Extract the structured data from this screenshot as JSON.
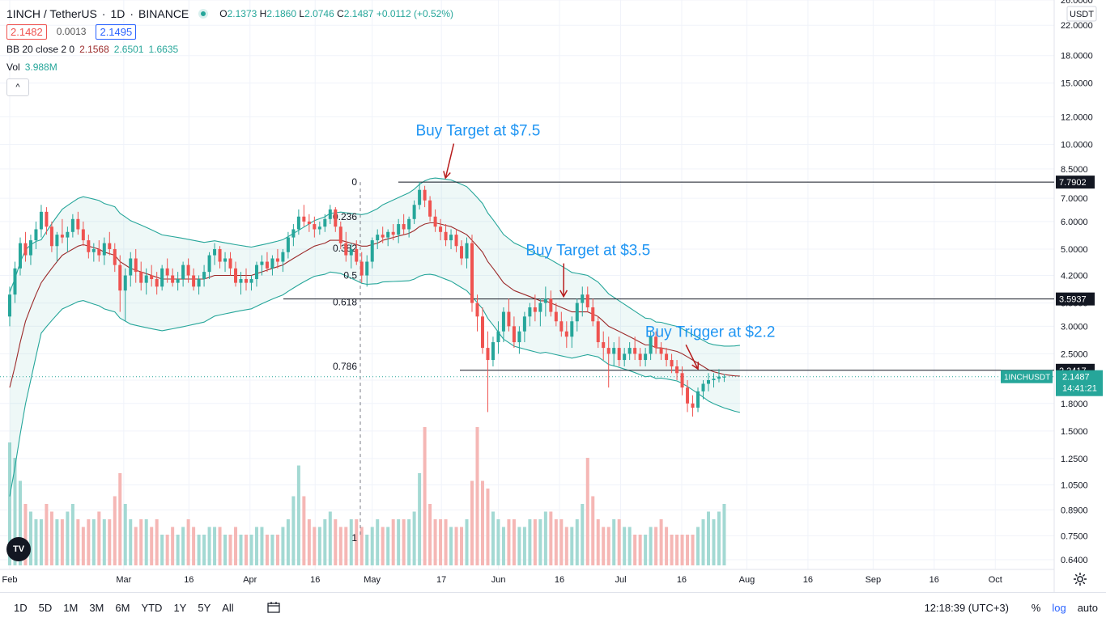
{
  "header": {
    "symbol": "1INCH / TetherUS",
    "interval": "1D",
    "exchange": "BINANCE",
    "ohlc": {
      "o_label": "O",
      "o": "2.1373",
      "h_label": "H",
      "h": "2.1860",
      "l_label": "L",
      "l": "2.0746",
      "c_label": "C",
      "c": "2.1487",
      "change": "+0.0112 (+0.52%)"
    },
    "sell_price": "2.1482",
    "spread": "0.0013",
    "buy_price": "2.1495",
    "bb_label": "BB 20 close 2 0",
    "bb_basis": "2.1568",
    "bb_upper": "2.6501",
    "bb_lower": "1.6635",
    "vol_label": "Vol",
    "vol_value": "3.988M",
    "collapse_glyph": "^"
  },
  "toolbar": {
    "timeframes": [
      "1D",
      "5D",
      "1M",
      "3M",
      "6M",
      "YTD",
      "1Y",
      "5Y",
      "All"
    ],
    "clock": "12:18:39 (UTC+3)",
    "percent": "%",
    "log": "log",
    "auto": "auto"
  },
  "chart_data": {
    "type": "candlestick",
    "title": "1INCH / TetherUS 1D BINANCE",
    "y_scale": "log",
    "currency": "USDT",
    "ylim": [
      0.6,
      26.0
    ],
    "y_ticks": [
      "26.0000",
      "22.0000",
      "18.0000",
      "15.0000",
      "12.0000",
      "10.0000",
      "8.5000",
      "7.0000",
      "6.0000",
      "5.0000",
      "4.2000",
      "3.5000",
      "3.0000",
      "2.5000",
      "2.1000",
      "1.8000",
      "1.5000",
      "1.2500",
      "1.0500",
      "0.8900",
      "0.7500",
      "0.6400"
    ],
    "y_tick_values": [
      26,
      22,
      18,
      15,
      12,
      10,
      8.5,
      7,
      6,
      5,
      4.2,
      3.5,
      3,
      2.5,
      2.1,
      1.8,
      1.5,
      1.25,
      1.05,
      0.89,
      0.75,
      0.64
    ],
    "x_ticks": [
      "Feb",
      "Mar",
      "16",
      "Apr",
      "16",
      "May",
      "17",
      "Jun",
      "16",
      "Jul",
      "16",
      "Aug",
      "16",
      "Sep",
      "16",
      "Oct"
    ],
    "x_tick_days": [
      0,
      28,
      44,
      59,
      75,
      89,
      106,
      120,
      135,
      150,
      165,
      181,
      196,
      212,
      227,
      242
    ],
    "price_labels": [
      {
        "text": "7.7902",
        "value": 7.7902,
        "style": "dark"
      },
      {
        "text": "3.5937",
        "value": 3.5937,
        "style": "dark"
      },
      {
        "text": "2.2417",
        "value": 2.2417,
        "style": "dark"
      },
      {
        "text": "1INCHUSDT",
        "value": 2.1487,
        "style": "green-tag"
      },
      {
        "text": "2.1487",
        "value": 2.1487,
        "style": "green"
      },
      {
        "text": "14:41:21",
        "value": 2.1487,
        "style": "green-sub"
      }
    ],
    "horizontal_levels": [
      7.7902,
      3.5937,
      2.2417
    ],
    "fibonacci": {
      "levels": [
        {
          "ratio": "0",
          "price": 7.79
        },
        {
          "ratio": "0.236",
          "price": 6.2
        },
        {
          "ratio": "0.382",
          "price": 5.02
        },
        {
          "ratio": "0.5",
          "price": 4.2
        },
        {
          "ratio": "0.618",
          "price": 3.52
        },
        {
          "ratio": "0.786",
          "price": 2.3
        },
        {
          "ratio": "1",
          "price": 0.74
        }
      ]
    },
    "annotations": [
      {
        "text": "Buy Target at $7.5",
        "day": 115,
        "price": 10.6,
        "arrow_to_day": 107,
        "arrow_to_price": 8.0
      },
      {
        "text": "Buy Target at $3.5",
        "day": 142,
        "price": 4.8,
        "arrow_to_day": 136,
        "arrow_to_price": 3.65
      },
      {
        "text": "Buy Trigger at $2.2",
        "day": 172,
        "price": 2.8,
        "arrow_to_day": 169,
        "arrow_to_price": 2.26
      }
    ],
    "candles_ohlc": [
      [
        3.2,
        3.9,
        3.0,
        3.7
      ],
      [
        3.7,
        4.6,
        3.5,
        4.4
      ],
      [
        4.4,
        5.4,
        4.2,
        5.2
      ],
      [
        5.2,
        5.6,
        4.6,
        4.8
      ],
      [
        4.8,
        5.5,
        4.5,
        5.3
      ],
      [
        5.3,
        6.0,
        5.0,
        5.7
      ],
      [
        5.7,
        6.7,
        5.4,
        6.4
      ],
      [
        6.4,
        6.6,
        5.5,
        5.8
      ],
      [
        5.8,
        6.0,
        4.9,
        5.1
      ],
      [
        5.1,
        5.6,
        4.6,
        5.5
      ],
      [
        5.5,
        6.1,
        5.2,
        5.4
      ],
      [
        5.4,
        5.8,
        4.9,
        5.6
      ],
      [
        5.6,
        6.3,
        5.4,
        6.1
      ],
      [
        6.1,
        6.4,
        5.5,
        5.7
      ],
      [
        5.7,
        6.0,
        5.1,
        5.3
      ],
      [
        5.3,
        5.5,
        4.7,
        4.9
      ],
      [
        4.9,
        5.2,
        4.6,
        5.0
      ],
      [
        5.0,
        5.3,
        4.6,
        4.8
      ],
      [
        4.8,
        5.4,
        4.5,
        5.2
      ],
      [
        5.2,
        5.6,
        4.8,
        5.0
      ],
      [
        5.0,
        5.2,
        4.3,
        4.5
      ],
      [
        4.5,
        4.8,
        3.3,
        3.8
      ],
      [
        3.8,
        4.4,
        3.1,
        4.2
      ],
      [
        4.2,
        4.9,
        3.9,
        4.7
      ],
      [
        4.7,
        5.0,
        4.0,
        4.3
      ],
      [
        4.3,
        4.6,
        3.8,
        4.0
      ],
      [
        4.0,
        4.4,
        3.7,
        4.2
      ],
      [
        4.2,
        4.5,
        3.9,
        4.1
      ],
      [
        4.1,
        4.3,
        3.7,
        3.9
      ],
      [
        3.9,
        4.5,
        3.8,
        4.4
      ],
      [
        4.4,
        4.7,
        4.0,
        4.2
      ],
      [
        4.2,
        4.4,
        3.9,
        4.0
      ],
      [
        4.0,
        4.3,
        3.8,
        4.1
      ],
      [
        4.1,
        4.6,
        3.9,
        4.5
      ],
      [
        4.5,
        4.7,
        4.0,
        4.2
      ],
      [
        4.2,
        4.4,
        3.8,
        3.9
      ],
      [
        3.9,
        4.2,
        3.7,
        4.1
      ],
      [
        4.1,
        4.5,
        3.9,
        4.3
      ],
      [
        4.3,
        4.9,
        4.1,
        4.8
      ],
      [
        4.8,
        5.2,
        4.5,
        5.0
      ],
      [
        5.0,
        5.1,
        4.4,
        4.6
      ],
      [
        4.6,
        4.9,
        4.3,
        4.7
      ],
      [
        4.7,
        4.9,
        4.2,
        4.4
      ],
      [
        4.4,
        4.6,
        3.9,
        4.0
      ],
      [
        4.0,
        4.3,
        3.7,
        4.1
      ],
      [
        4.1,
        4.4,
        3.8,
        4.0
      ],
      [
        4.0,
        4.2,
        3.8,
        4.1
      ],
      [
        4.1,
        4.6,
        3.9,
        4.5
      ],
      [
        4.5,
        4.8,
        4.2,
        4.6
      ],
      [
        4.6,
        4.9,
        4.3,
        4.4
      ],
      [
        4.4,
        4.8,
        4.2,
        4.7
      ],
      [
        4.7,
        5.0,
        4.4,
        4.6
      ],
      [
        4.6,
        5.0,
        4.3,
        4.9
      ],
      [
        4.9,
        5.6,
        4.7,
        5.4
      ],
      [
        5.4,
        5.9,
        5.1,
        5.7
      ],
      [
        5.7,
        6.5,
        5.5,
        6.2
      ],
      [
        6.2,
        6.7,
        5.8,
        6.0
      ],
      [
        6.0,
        6.3,
        5.6,
        5.9
      ],
      [
        5.9,
        6.2,
        5.4,
        5.7
      ],
      [
        5.7,
        6.0,
        5.5,
        5.8
      ],
      [
        5.8,
        6.3,
        5.6,
        6.1
      ],
      [
        6.1,
        6.7,
        5.9,
        6.5
      ],
      [
        6.5,
        6.6,
        5.6,
        5.8
      ],
      [
        5.8,
        6.0,
        5.0,
        5.2
      ],
      [
        5.2,
        5.6,
        4.6,
        4.8
      ],
      [
        4.8,
        5.2,
        4.4,
        5.0
      ],
      [
        5.0,
        5.3,
        4.5,
        4.6
      ],
      [
        4.6,
        4.9,
        4.0,
        4.2
      ],
      [
        4.2,
        4.8,
        3.9,
        4.6
      ],
      [
        4.6,
        5.4,
        4.4,
        5.3
      ],
      [
        5.3,
        5.7,
        5.0,
        5.5
      ],
      [
        5.5,
        5.8,
        5.2,
        5.4
      ],
      [
        5.4,
        5.7,
        5.1,
        5.6
      ],
      [
        5.6,
        5.9,
        5.3,
        5.5
      ],
      [
        5.5,
        6.1,
        5.2,
        5.9
      ],
      [
        5.9,
        6.3,
        5.5,
        5.7
      ],
      [
        5.7,
        6.2,
        5.4,
        6.1
      ],
      [
        6.1,
        6.9,
        5.9,
        6.7
      ],
      [
        6.7,
        7.8,
        6.5,
        7.4
      ],
      [
        7.4,
        7.6,
        6.6,
        6.9
      ],
      [
        6.9,
        7.1,
        6.0,
        6.2
      ],
      [
        6.2,
        6.5,
        5.6,
        5.8
      ],
      [
        5.8,
        6.1,
        5.3,
        5.6
      ],
      [
        5.6,
        5.9,
        5.1,
        5.3
      ],
      [
        5.3,
        5.7,
        5.0,
        5.5
      ],
      [
        5.5,
        5.7,
        4.9,
        5.1
      ],
      [
        5.1,
        5.3,
        4.5,
        4.7
      ],
      [
        4.7,
        5.4,
        4.4,
        5.2
      ],
      [
        5.2,
        5.5,
        3.3,
        3.5
      ],
      [
        3.5,
        3.7,
        2.9,
        3.2
      ],
      [
        3.2,
        3.4,
        2.5,
        2.6
      ],
      [
        2.6,
        2.9,
        1.7,
        2.4
      ],
      [
        2.4,
        2.8,
        2.3,
        2.7
      ],
      [
        2.7,
        3.1,
        2.5,
        2.9
      ],
      [
        2.9,
        3.4,
        2.7,
        3.3
      ],
      [
        3.3,
        3.6,
        2.9,
        3.0
      ],
      [
        3.0,
        3.2,
        2.6,
        2.7
      ],
      [
        2.7,
        3.0,
        2.5,
        2.9
      ],
      [
        2.9,
        3.3,
        2.7,
        3.2
      ],
      [
        3.2,
        3.5,
        3.0,
        3.4
      ],
      [
        3.4,
        3.7,
        3.1,
        3.3
      ],
      [
        3.3,
        3.6,
        3.0,
        3.5
      ],
      [
        3.5,
        3.9,
        3.2,
        3.6
      ],
      [
        3.6,
        3.8,
        3.2,
        3.3
      ],
      [
        3.3,
        3.5,
        3.0,
        3.1
      ],
      [
        3.1,
        3.3,
        2.8,
        2.9
      ],
      [
        2.9,
        3.1,
        2.6,
        2.8
      ],
      [
        2.8,
        3.2,
        2.6,
        3.1
      ],
      [
        3.1,
        3.6,
        2.9,
        3.5
      ],
      [
        3.5,
        3.9,
        3.2,
        3.7
      ],
      [
        3.7,
        3.9,
        3.3,
        3.4
      ],
      [
        3.4,
        3.6,
        3.0,
        3.1
      ],
      [
        3.1,
        3.2,
        2.6,
        2.7
      ],
      [
        2.7,
        2.9,
        2.4,
        2.6
      ],
      [
        2.6,
        2.8,
        2.0,
        2.5
      ],
      [
        2.5,
        2.7,
        2.3,
        2.6
      ],
      [
        2.6,
        2.8,
        2.3,
        2.4
      ],
      [
        2.4,
        2.6,
        2.3,
        2.5
      ],
      [
        2.5,
        2.7,
        2.4,
        2.6
      ],
      [
        2.6,
        2.8,
        2.4,
        2.5
      ],
      [
        2.5,
        2.6,
        2.3,
        2.4
      ],
      [
        2.4,
        2.6,
        2.3,
        2.5
      ],
      [
        2.5,
        2.9,
        2.4,
        2.8
      ],
      [
        2.8,
        2.9,
        2.5,
        2.6
      ],
      [
        2.6,
        2.7,
        2.4,
        2.5
      ],
      [
        2.5,
        2.6,
        2.3,
        2.4
      ],
      [
        2.4,
        2.5,
        2.2,
        2.3
      ],
      [
        2.3,
        2.4,
        2.1,
        2.2
      ],
      [
        2.2,
        2.3,
        1.9,
        2.0
      ],
      [
        2.0,
        2.1,
        1.7,
        1.8
      ],
      [
        1.8,
        1.9,
        1.65,
        1.75
      ],
      [
        1.75,
        2.0,
        1.7,
        1.95
      ],
      [
        1.95,
        2.1,
        1.85,
        2.05
      ],
      [
        2.05,
        2.2,
        1.95,
        2.1
      ],
      [
        2.1,
        2.2,
        2.0,
        2.12
      ],
      [
        2.12,
        2.26,
        2.07,
        2.15
      ],
      [
        2.137,
        2.186,
        2.075,
        2.149
      ]
    ],
    "bollinger": {
      "basis": [
        2.0,
        2.3,
        2.7,
        3.1,
        3.4,
        3.7,
        4.0,
        4.2,
        4.4,
        4.6,
        4.8,
        4.9,
        5.0,
        5.1,
        5.15,
        5.1,
        5.05,
        5.0,
        4.9,
        4.85,
        4.8,
        4.6,
        4.5,
        4.4,
        4.35,
        4.3,
        4.25,
        4.2,
        4.15,
        4.1,
        4.1,
        4.1,
        4.1,
        4.1,
        4.1,
        4.1,
        4.1,
        4.1,
        4.15,
        4.2,
        4.2,
        4.2,
        4.2,
        4.2,
        4.2,
        4.2,
        4.2,
        4.25,
        4.3,
        4.35,
        4.4,
        4.45,
        4.5,
        4.6,
        4.7,
        4.8,
        4.9,
        5.0,
        5.1,
        5.15,
        5.2,
        5.3,
        5.3,
        5.3,
        5.25,
        5.2,
        5.15,
        5.1,
        5.1,
        5.15,
        5.2,
        5.3,
        5.35,
        5.4,
        5.45,
        5.5,
        5.55,
        5.65,
        5.8,
        5.9,
        5.95,
        5.95,
        5.9,
        5.85,
        5.8,
        5.7,
        5.6,
        5.5,
        5.3,
        5.1,
        4.9,
        4.6,
        4.4,
        4.2,
        4.0,
        3.9,
        3.8,
        3.75,
        3.7,
        3.65,
        3.6,
        3.55,
        3.55,
        3.5,
        3.45,
        3.4,
        3.35,
        3.3,
        3.3,
        3.3,
        3.3,
        3.25,
        3.2,
        3.1,
        3.0,
        2.95,
        2.9,
        2.85,
        2.8,
        2.75,
        2.7,
        2.65,
        2.65,
        2.6,
        2.6,
        2.58,
        2.56,
        2.54,
        2.5,
        2.45,
        2.4,
        2.35,
        2.3,
        2.25,
        2.22,
        2.2,
        2.18,
        2.17,
        2.16,
        2.157
      ],
      "upper_band_value": 2.6501,
      "lower_band_value": 1.6635
    },
    "volume": {
      "unit": "M",
      "last": 3.988,
      "values_relative": [
        0.8,
        0.7,
        0.55,
        0.4,
        0.35,
        0.3,
        0.3,
        0.4,
        0.35,
        0.3,
        0.3,
        0.35,
        0.4,
        0.3,
        0.25,
        0.3,
        0.3,
        0.35,
        0.3,
        0.3,
        0.45,
        0.6,
        0.4,
        0.3,
        0.25,
        0.3,
        0.3,
        0.25,
        0.3,
        0.2,
        0.2,
        0.25,
        0.2,
        0.25,
        0.3,
        0.25,
        0.2,
        0.2,
        0.25,
        0.25,
        0.25,
        0.2,
        0.2,
        0.25,
        0.2,
        0.2,
        0.2,
        0.25,
        0.25,
        0.2,
        0.2,
        0.2,
        0.25,
        0.3,
        0.45,
        0.65,
        0.45,
        0.3,
        0.25,
        0.25,
        0.3,
        0.35,
        0.3,
        0.25,
        0.25,
        0.3,
        0.3,
        0.25,
        0.2,
        0.25,
        0.3,
        0.25,
        0.25,
        0.3,
        0.3,
        0.3,
        0.3,
        0.35,
        0.6,
        0.9,
        0.4,
        0.3,
        0.3,
        0.3,
        0.25,
        0.25,
        0.25,
        0.3,
        0.55,
        0.9,
        0.55,
        0.5,
        0.35,
        0.3,
        0.25,
        0.3,
        0.3,
        0.25,
        0.25,
        0.3,
        0.3,
        0.3,
        0.35,
        0.35,
        0.3,
        0.3,
        0.25,
        0.25,
        0.3,
        0.4,
        0.7,
        0.45,
        0.3,
        0.25,
        0.25,
        0.3,
        0.3,
        0.25,
        0.25,
        0.2,
        0.2,
        0.2,
        0.25,
        0.25,
        0.3,
        0.25,
        0.2,
        0.2,
        0.2,
        0.2,
        0.2,
        0.25,
        0.3,
        0.35,
        0.3,
        0.35,
        0.4,
        0.55,
        0.1
      ]
    }
  }
}
